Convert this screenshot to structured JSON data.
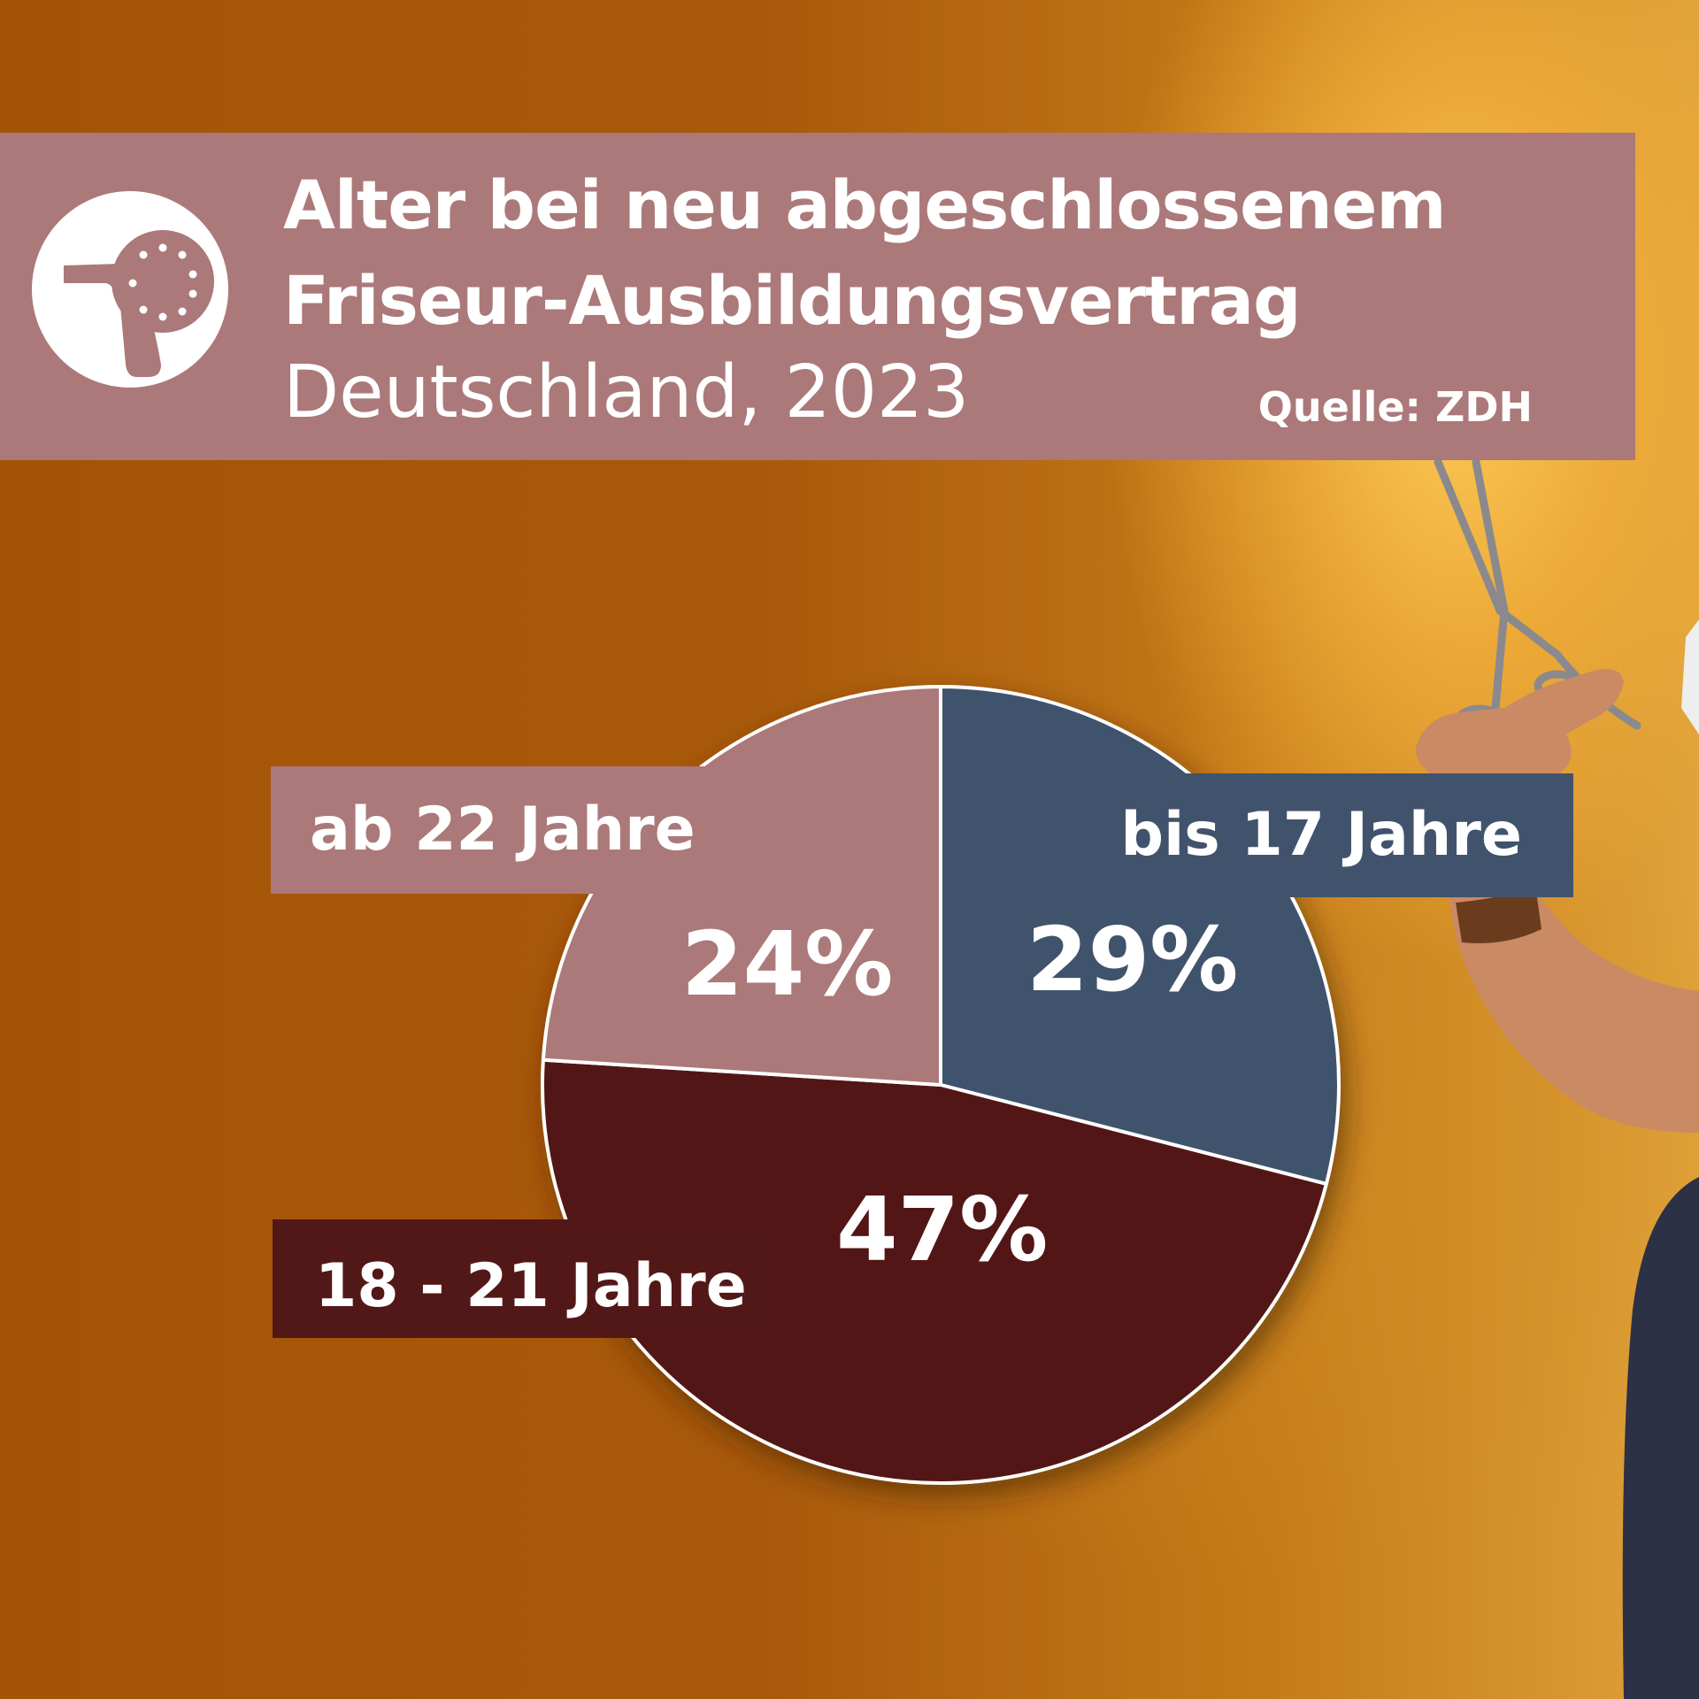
{
  "header": {
    "title_line1": "Alter bei neu abgeschlossenem",
    "title_line2": "Friseur-Ausbildungsvertrag",
    "subtitle": "Deutschland, 2023",
    "source": "Quelle: ZDH",
    "icon": "hair-dryer-icon"
  },
  "colors": {
    "header_bg": "#ab7979",
    "bis_17": "#41536c",
    "18_21": "#521817",
    "ab_22": "#ab7979"
  },
  "chart_data": {
    "type": "pie",
    "title": "Alter bei neu abgeschlossenem Friseur-Ausbildungsvertrag",
    "subtitle": "Deutschland, 2023",
    "source": "Quelle: ZDH",
    "slices": [
      {
        "label": "bis 17 Jahre",
        "value": 29,
        "value_label": "29%",
        "color": "#41536c"
      },
      {
        "label": "18 - 21 Jahre",
        "value": 47,
        "value_label": "47%",
        "color": "#521817"
      },
      {
        "label": "ab 22 Jahre",
        "value": 24,
        "value_label": "24%",
        "color": "#ab7979"
      }
    ]
  }
}
